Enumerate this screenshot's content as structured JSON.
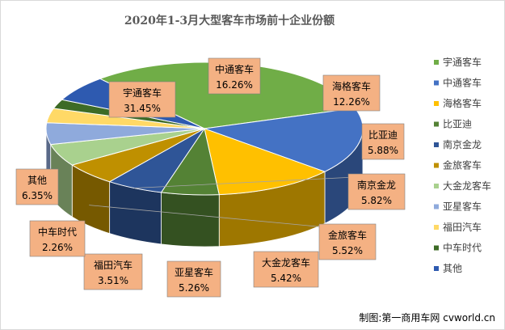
{
  "chart_data": {
    "type": "pie",
    "title": "2020年1-3月大型客车市场前十企业份额",
    "legend_position": "right",
    "series": [
      {
        "name": "宇通客车",
        "value": 31.45,
        "label": "31.45%",
        "color": "#70ad47"
      },
      {
        "name": "中通客车",
        "value": 16.26,
        "label": "16.26%",
        "color": "#4472c4"
      },
      {
        "name": "海格客车",
        "value": 12.26,
        "label": "12.26%",
        "color": "#ffc000"
      },
      {
        "name": "比亚迪",
        "value": 5.88,
        "label": "5.88%",
        "color": "#548235"
      },
      {
        "name": "南京金龙",
        "value": 5.82,
        "label": "5.82%",
        "color": "#2f5597"
      },
      {
        "name": "金旅客车",
        "value": 5.52,
        "label": "5.52%",
        "color": "#bf9000"
      },
      {
        "name": "大金龙客车",
        "value": 5.42,
        "label": "5.42%",
        "color": "#a9d18e"
      },
      {
        "name": "亚星客车",
        "value": 5.26,
        "label": "5.26%",
        "color": "#8faadc"
      },
      {
        "name": "福田汽车",
        "value": 3.51,
        "label": "3.51%",
        "color": "#ffd966"
      },
      {
        "name": "中车时代",
        "value": 2.26,
        "label": "2.26%",
        "color": "#3d6b26"
      },
      {
        "name": "其他",
        "value": 6.35,
        "label": "6.35%",
        "color": "#2e5ab0"
      }
    ]
  },
  "watermark": "制图:第一商用车网 cvworld.cn"
}
